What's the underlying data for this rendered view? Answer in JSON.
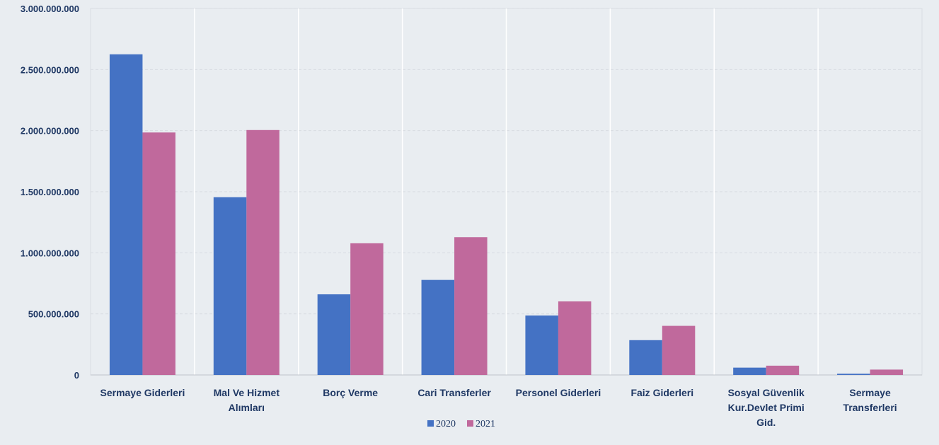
{
  "chart_data": {
    "type": "bar",
    "categories": [
      [
        "Sermaye Giderleri"
      ],
      [
        "Mal Ve Hizmet",
        "Alımları"
      ],
      [
        "Borç Verme"
      ],
      [
        "Cari Transferler"
      ],
      [
        "Personel Giderleri"
      ],
      [
        "Faiz Giderleri"
      ],
      [
        "Sosyal Güvenlik",
        "Kur.Devlet Primi",
        "Gid."
      ],
      [
        "Sermaye",
        "Transferleri"
      ]
    ],
    "series": [
      {
        "name": "2020",
        "color": "#4472c4",
        "values": [
          2625000000,
          1455000000,
          660000000,
          778000000,
          487000000,
          285000000,
          60000000,
          10000000
        ]
      },
      {
        "name": "2021",
        "color": "#c0699c",
        "values": [
          1985000000,
          2005000000,
          1078000000,
          1128000000,
          602000000,
          402000000,
          76000000,
          44000000
        ]
      }
    ],
    "ylim": [
      0,
      3000000000
    ],
    "yticks": [
      "0",
      "500.000.000",
      "1.000.000.000",
      "1.500.000.000",
      "2.000.000.000",
      "2.500.000.000",
      "3.000.000.000"
    ],
    "ytick_values": [
      0,
      500000000,
      1000000000,
      1500000000,
      2000000000,
      2500000000,
      3000000000
    ],
    "grid": true,
    "legend_position": "bottom-center"
  }
}
